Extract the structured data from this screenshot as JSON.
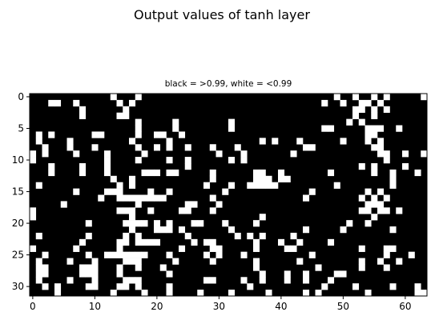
{
  "suptitle": "Output values of tanh layer",
  "chart_data": {
    "type": "heatmap",
    "title": "black = >0.99, white = <0.99",
    "xlabel": "",
    "ylabel": "",
    "n_cols": 64,
    "n_rows": 32,
    "xticks": [
      0,
      10,
      20,
      30,
      40,
      50,
      60
    ],
    "yticks": [
      0,
      5,
      10,
      15,
      20,
      25,
      30
    ],
    "colors": {
      "above_threshold": "#000000",
      "below_threshold": "#ffffff"
    },
    "white_cells_by_row": [
      [
        13,
        17,
        49,
        52,
        55,
        57,
        63
      ],
      [
        3,
        4,
        7,
        14,
        16,
        47,
        50,
        53,
        54,
        56
      ],
      [
        8,
        15,
        52,
        53,
        55,
        57
      ],
      [
        8,
        14,
        15,
        52,
        55
      ],
      [
        17,
        23,
        32,
        51,
        53
      ],
      [
        17,
        23,
        32,
        47,
        48,
        54,
        55,
        56,
        59
      ],
      [
        1,
        3,
        10,
        11,
        17,
        20,
        21,
        24,
        54,
        55
      ],
      [
        1,
        6,
        16,
        22,
        37,
        39,
        43,
        50,
        54,
        56
      ],
      [
        2,
        6,
        10,
        17,
        20,
        22,
        25,
        29,
        33,
        44,
        45,
        55,
        56
      ],
      [
        0,
        2,
        7,
        12,
        18,
        30,
        34,
        42,
        56,
        57,
        60,
        63
      ],
      [
        0,
        12,
        17,
        22,
        25,
        32,
        34,
        57
      ],
      [
        3,
        8,
        12,
        25,
        53,
        55,
        60
      ],
      [
        3,
        8,
        12,
        18,
        19,
        20,
        22,
        23,
        29,
        36,
        37,
        40,
        48,
        55,
        58,
        62
      ],
      [
        13,
        16,
        29,
        36,
        37,
        38,
        40,
        41,
        58
      ],
      [
        1,
        14,
        16,
        28,
        32,
        35,
        36,
        37,
        38,
        39,
        49,
        58
      ],
      [
        7,
        12,
        13,
        14,
        19,
        22,
        31,
        45,
        54,
        56
      ],
      [
        11,
        14,
        15,
        16,
        17,
        18,
        19,
        20,
        21,
        29,
        44,
        53,
        55,
        57
      ],
      [
        5,
        17,
        25,
        26,
        30,
        54,
        55,
        56
      ],
      [
        0,
        14,
        15,
        16,
        19,
        24,
        25,
        29,
        53,
        54,
        56,
        57,
        59
      ],
      [
        0,
        16,
        37,
        55
      ],
      [
        9,
        15,
        16,
        17,
        18,
        20,
        22,
        26,
        27,
        31,
        36,
        51,
        54
      ],
      [
        16,
        20,
        21,
        22,
        24,
        32,
        44,
        50,
        58
      ],
      [
        1,
        9,
        15,
        17,
        25,
        33,
        35,
        37,
        42
      ],
      [
        8,
        14,
        15,
        17,
        18,
        19,
        20,
        26,
        28,
        29,
        36,
        40,
        43,
        48
      ],
      [
        0,
        7,
        14,
        24,
        29,
        30,
        36,
        41,
        42,
        53,
        57,
        58
      ],
      [
        2,
        9,
        12,
        13,
        14,
        15,
        16,
        17,
        18,
        22,
        28,
        30,
        34,
        45,
        57,
        61
      ],
      [
        1,
        6,
        10,
        15,
        16,
        17,
        23,
        29,
        36,
        43,
        53,
        56,
        59
      ],
      [
        1,
        2,
        8,
        9,
        10,
        14,
        17,
        21,
        36,
        46,
        53,
        57
      ],
      [
        1,
        2,
        8,
        9,
        10,
        14,
        22,
        37,
        41,
        44,
        49,
        50
      ],
      [
        1,
        6,
        10,
        15,
        16,
        17,
        28,
        29,
        34,
        37,
        41,
        44,
        48
      ],
      [
        2,
        4,
        9,
        10,
        14,
        15,
        17,
        22,
        35,
        47,
        52,
        58,
        62
      ],
      [
        4,
        13,
        18,
        22,
        27,
        32,
        38,
        44,
        46,
        54,
        62,
        63
      ]
    ]
  }
}
